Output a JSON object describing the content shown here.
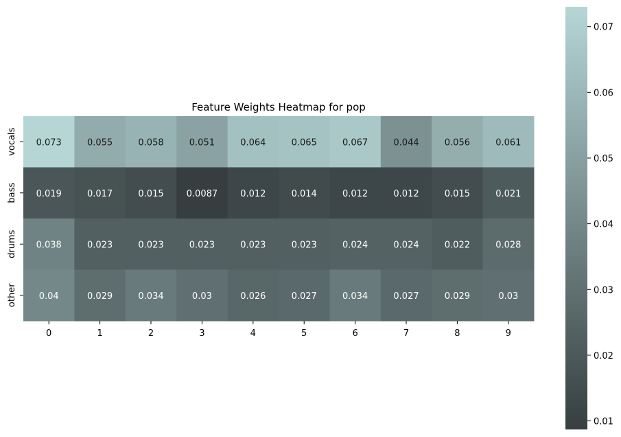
{
  "chart_data": {
    "type": "heatmap",
    "title": "Feature Weights Heatmap for pop",
    "xlabel": "",
    "ylabel": "",
    "x_categories": [
      "0",
      "1",
      "2",
      "3",
      "4",
      "5",
      "6",
      "7",
      "8",
      "9"
    ],
    "y_categories": [
      "vocals",
      "bass",
      "drums",
      "other"
    ],
    "values": [
      [
        0.073,
        0.055,
        0.058,
        0.051,
        0.064,
        0.065,
        0.067,
        0.044,
        0.056,
        0.061
      ],
      [
        0.019,
        0.017,
        0.015,
        0.0087,
        0.012,
        0.014,
        0.012,
        0.012,
        0.015,
        0.021
      ],
      [
        0.038,
        0.023,
        0.023,
        0.023,
        0.023,
        0.023,
        0.024,
        0.024,
        0.022,
        0.028
      ],
      [
        0.04,
        0.029,
        0.034,
        0.03,
        0.026,
        0.027,
        0.034,
        0.027,
        0.029,
        0.03
      ]
    ],
    "labels": [
      [
        "0.073",
        "0.055",
        "0.058",
        "0.051",
        "0.064",
        "0.065",
        "0.067",
        "0.044",
        "0.056",
        "0.061"
      ],
      [
        "0.019",
        "0.017",
        "0.015",
        "0.0087",
        "0.012",
        "0.014",
        "0.012",
        "0.012",
        "0.015",
        "0.021"
      ],
      [
        "0.038",
        "0.023",
        "0.023",
        "0.023",
        "0.023",
        "0.023",
        "0.024",
        "0.024",
        "0.022",
        "0.028"
      ],
      [
        "0.04",
        "0.029",
        "0.034",
        "0.03",
        "0.026",
        "0.027",
        "0.034",
        "0.027",
        "0.029",
        "0.03"
      ]
    ],
    "colorbar": {
      "min": 0.0087,
      "max": 0.073,
      "ticks": [
        0.01,
        0.02,
        0.03,
        0.04,
        0.05,
        0.06,
        0.07
      ],
      "tick_labels": [
        "0.01",
        "0.02",
        "0.03",
        "0.04",
        "0.05",
        "0.06",
        "0.07"
      ],
      "color_low": "#363e40",
      "color_high": "#b6d6d6"
    },
    "grid": false
  }
}
